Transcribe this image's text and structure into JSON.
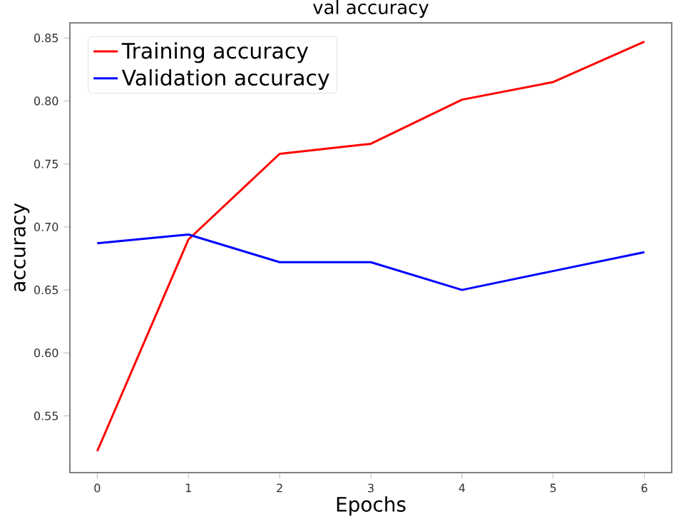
{
  "chart_data": {
    "type": "line",
    "title": "val accuracy",
    "xlabel": "Epochs",
    "ylabel": "accuracy",
    "x": [
      0,
      1,
      2,
      3,
      4,
      5,
      6
    ],
    "series": [
      {
        "name": "Training accuracy",
        "color": "#ff0000",
        "values": [
          0.522,
          0.69,
          0.758,
          0.766,
          0.801,
          0.815,
          0.847
        ]
      },
      {
        "name": "Validation accuracy",
        "color": "#0000ff",
        "values": [
          0.687,
          0.694,
          0.672,
          0.672,
          0.65,
          0.665,
          0.68
        ]
      }
    ],
    "xlim": [
      -0.3,
      6.3
    ],
    "ylim": [
      0.505,
      0.862
    ],
    "xticks": [
      0,
      1,
      2,
      3,
      4,
      5,
      6
    ],
    "yticks": [
      0.55,
      {
        "value": 0.6,
        "label": "0.60"
      },
      0.65,
      {
        "value": 0.7,
        "label": "0.70"
      },
      0.75,
      {
        "value": 0.8,
        "label": "0.80"
      },
      0.85
    ],
    "legend": "top left",
    "grid": false,
    "marker": "none",
    "line_style": "solid"
  }
}
